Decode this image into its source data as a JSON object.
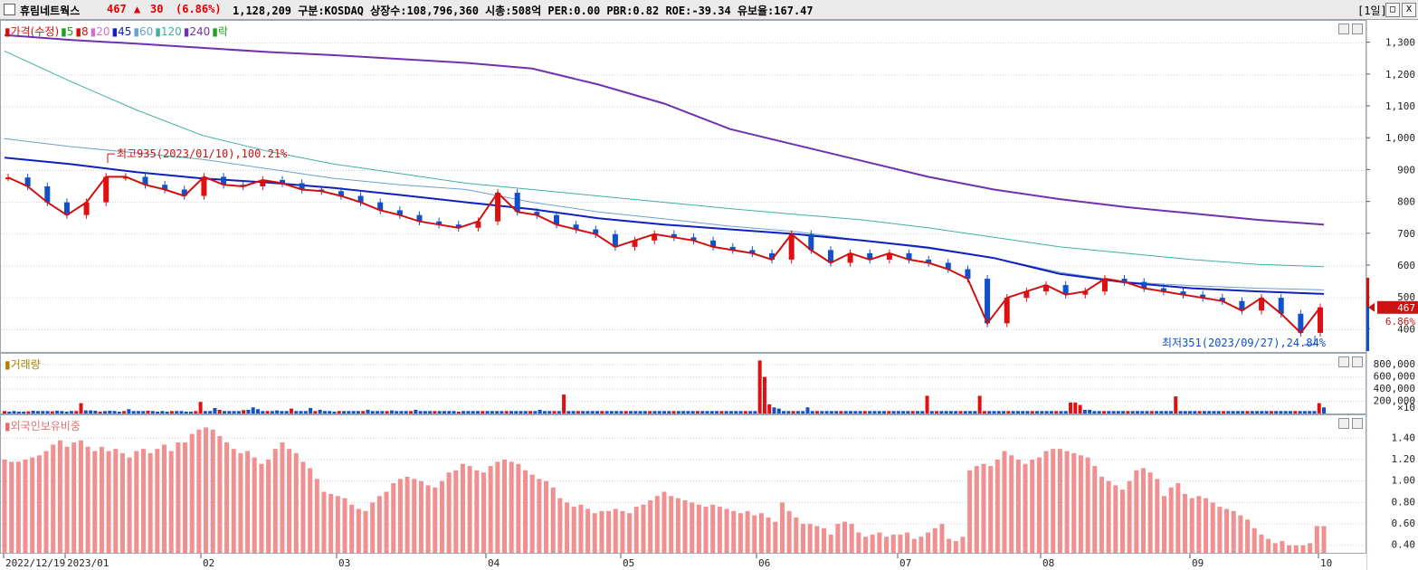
{
  "header": {
    "name": "휴림네트웍스",
    "price": "467",
    "arrow": "▲",
    "change": "30",
    "change_pct": "(6.86%)",
    "info": "1,128,209  구분:KOSDAQ 상장수:108,796,360 시총:508억 PER:0.00 PBR:0.82 ROE:-39.34 유보율:167.47",
    "period": "[1일]",
    "btn_min": "_",
    "btn_max": "□",
    "btn_close": "X"
  },
  "legend_price": [
    {
      "label": "가격(수정)",
      "color": "#d01010"
    },
    {
      "label": "5",
      "color": "#20a020"
    },
    {
      "label": "8",
      "color": "#d01010"
    },
    {
      "label": "20",
      "color": "#d070d0"
    },
    {
      "label": "45",
      "color": "#1020c0"
    },
    {
      "label": "60",
      "color": "#6aa0d0"
    },
    {
      "label": "120",
      "color": "#40b0a0"
    },
    {
      "label": "240",
      "color": "#7030b0"
    },
    {
      "label": "락",
      "color": "#20a020"
    }
  ],
  "legend_volume": "거래량",
  "legend_foreign": "외국인보유비중",
  "annotations": {
    "high": "최고935(2023/01/10),100.21%",
    "low": "최저351(2023/09/27),24.84%",
    "last_price": "467",
    "last_pct": "6.86%",
    "volume_mult": "×10"
  },
  "colors": {
    "up": "#e01010",
    "down": "#1050c8",
    "foreign": "#f09090",
    "grid": "#c8d0dc"
  },
  "chart_data": [
    {
      "type": "candlestick",
      "title": "가격(수정)",
      "x_start": "2022/12/19",
      "x_end": "2023/10",
      "ylim": [
        330,
        1370
      ],
      "y_ticks": [
        "1,300",
        "1,200",
        "1,100",
        "1,000",
        "900",
        "800",
        "700",
        "600",
        "500",
        "400"
      ],
      "y_tick_values": [
        1300,
        1200,
        1100,
        1000,
        900,
        800,
        700,
        600,
        500,
        400
      ],
      "high": {
        "value": 935,
        "date": "2023/01/10",
        "pct": 100.21
      },
      "low": {
        "value": 351,
        "date": "2023/09/27",
        "pct": 24.84
      },
      "last": 467,
      "series": [
        {
          "name": "240",
          "values": [
            1325,
            1310,
            1298,
            1285,
            1272,
            1262,
            1250,
            1238,
            1220,
            1170,
            1110,
            1030,
            980,
            930,
            880,
            840,
            810,
            785,
            765,
            745,
            730
          ]
        },
        {
          "name": "120",
          "values": [
            1275,
            1180,
            1090,
            1010,
            960,
            920,
            890,
            860,
            840,
            820,
            800,
            780,
            762,
            745,
            720,
            690,
            660,
            640,
            620,
            605,
            598
          ]
        },
        {
          "name": "60",
          "values": [
            1000,
            975,
            955,
            935,
            905,
            875,
            855,
            840,
            800,
            770,
            748,
            725,
            708,
            680,
            655,
            625,
            580,
            550,
            538,
            530,
            525
          ]
        },
        {
          "name": "45",
          "values": [
            940,
            920,
            895,
            875,
            862,
            845,
            823,
            800,
            778,
            750,
            730,
            715,
            700,
            680,
            658,
            625,
            575,
            548,
            530,
            520,
            512
          ]
        }
      ],
      "candles": [
        878,
        850,
        800,
        760,
        800,
        880,
        880,
        855,
        840,
        820,
        880,
        855,
        850,
        870,
        860,
        840,
        835,
        820,
        800,
        775,
        760,
        740,
        730,
        720,
        740,
        830,
        770,
        760,
        730,
        715,
        700,
        660,
        680,
        700,
        690,
        680,
        660,
        650,
        640,
        620,
        700,
        650,
        610,
        640,
        620,
        640,
        620,
        610,
        590,
        560,
        420,
        500,
        520,
        540,
        510,
        520,
        560,
        550,
        530,
        520,
        510,
        500,
        490,
        460,
        500,
        450,
        390,
        470
      ]
    },
    {
      "type": "bar",
      "title": "거래량",
      "y_ticks": [
        "800,000",
        "600,000",
        "400,000",
        "200,000"
      ],
      "y_tick_values": [
        800000,
        600000,
        400000,
        200000
      ],
      "ylim": [
        0,
        950000
      ],
      "values": [
        40000,
        30000,
        40000,
        30000,
        30000,
        35000,
        45000,
        40000,
        40000,
        40000,
        35000,
        45000,
        40000,
        30000,
        40000,
        40000,
        170000,
        50000,
        50000,
        45000,
        30000,
        40000,
        45000,
        40000,
        30000,
        40000,
        70000,
        40000,
        40000,
        40000,
        45000,
        40000,
        30000,
        40000,
        30000,
        40000,
        40000,
        40000,
        30000,
        30000,
        40000,
        190000,
        40000,
        40000,
        90000,
        60000,
        40000,
        40000,
        40000,
        40000,
        55000,
        60000,
        100000,
        70000,
        40000,
        40000,
        40000,
        50000,
        40000,
        40000,
        80000,
        40000,
        40000,
        40000,
        90000,
        40000,
        60000,
        40000,
        40000,
        30000,
        40000,
        40000,
        40000,
        40000,
        40000,
        40000,
        60000,
        40000,
        40000,
        40000,
        40000,
        50000,
        40000,
        40000,
        40000,
        40000,
        60000,
        40000,
        40000,
        40000,
        40000,
        40000,
        40000,
        40000,
        40000,
        30000,
        40000,
        40000,
        40000,
        40000,
        40000,
        40000,
        40000,
        40000,
        40000,
        40000,
        40000,
        40000,
        40000,
        40000,
        40000,
        40000,
        60000,
        40000,
        40000,
        40000,
        40000,
        310000,
        40000,
        40000,
        40000,
        40000,
        40000,
        40000,
        40000,
        40000,
        40000,
        40000,
        40000,
        40000,
        40000,
        40000,
        40000,
        40000,
        40000,
        40000,
        40000,
        40000,
        40000,
        40000,
        40000,
        40000,
        40000,
        40000,
        40000,
        40000,
        40000,
        40000,
        40000,
        40000,
        40000,
        40000,
        40000,
        40000,
        40000,
        40000,
        40000,
        40000,
        870000,
        600000,
        150000,
        100000,
        80000,
        40000,
        40000,
        40000,
        40000,
        40000,
        100000,
        40000,
        40000,
        40000,
        40000,
        40000,
        40000,
        40000,
        40000,
        40000,
        40000,
        40000,
        40000,
        40000,
        40000,
        40000,
        40000,
        40000,
        40000,
        40000,
        40000,
        40000,
        40000,
        40000,
        40000,
        290000,
        40000,
        40000,
        40000,
        40000,
        40000,
        40000,
        40000,
        40000,
        40000,
        40000,
        290000,
        40000,
        40000,
        40000,
        40000,
        40000,
        40000,
        40000,
        40000,
        40000,
        40000,
        40000,
        40000,
        40000,
        40000,
        40000,
        40000,
        40000,
        40000,
        180000,
        180000,
        140000,
        60000,
        60000,
        40000,
        40000,
        40000,
        40000,
        40000,
        40000,
        40000,
        40000,
        40000,
        40000,
        40000,
        40000,
        40000,
        40000,
        40000,
        40000,
        40000,
        280000,
        40000,
        40000,
        40000,
        40000,
        40000,
        40000,
        40000,
        40000,
        40000,
        40000,
        40000,
        40000,
        40000,
        40000,
        40000,
        40000,
        40000,
        40000,
        40000,
        40000,
        40000,
        40000,
        40000,
        40000,
        40000,
        40000,
        40000,
        40000,
        40000,
        170000,
        100000
      ]
    },
    {
      "type": "bar",
      "title": "외국인보유비중",
      "y_ticks": [
        "1.40",
        "1.20",
        "1.00",
        "0.80",
        "0.60",
        "0.40"
      ],
      "y_tick_values": [
        1.4,
        1.2,
        1.0,
        0.8,
        0.6,
        0.4
      ],
      "ylim": [
        0.33,
        1.58
      ],
      "values": [
        1.2,
        1.18,
        1.18,
        1.2,
        1.22,
        1.24,
        1.28,
        1.34,
        1.38,
        1.32,
        1.36,
        1.38,
        1.32,
        1.28,
        1.32,
        1.28,
        1.3,
        1.26,
        1.22,
        1.28,
        1.3,
        1.26,
        1.3,
        1.34,
        1.28,
        1.36,
        1.36,
        1.44,
        1.48,
        1.5,
        1.48,
        1.42,
        1.36,
        1.3,
        1.26,
        1.28,
        1.22,
        1.16,
        1.2,
        1.3,
        1.36,
        1.3,
        1.26,
        1.18,
        1.12,
        1.02,
        0.9,
        0.88,
        0.86,
        0.84,
        0.78,
        0.74,
        0.72,
        0.8,
        0.86,
        0.9,
        0.98,
        1.02,
        1.04,
        1.02,
        1.0,
        0.96,
        0.94,
        1.0,
        1.08,
        1.1,
        1.16,
        1.14,
        1.1,
        1.08,
        1.14,
        1.18,
        1.2,
        1.18,
        1.16,
        1.1,
        1.06,
        1.02,
        1.0,
        0.94,
        0.84,
        0.8,
        0.76,
        0.78,
        0.74,
        0.7,
        0.72,
        0.72,
        0.74,
        0.72,
        0.7,
        0.76,
        0.78,
        0.82,
        0.86,
        0.9,
        0.86,
        0.84,
        0.82,
        0.8,
        0.78,
        0.76,
        0.78,
        0.76,
        0.74,
        0.72,
        0.7,
        0.72,
        0.68,
        0.7,
        0.66,
        0.62,
        0.8,
        0.72,
        0.66,
        0.6,
        0.6,
        0.58,
        0.56,
        0.5,
        0.6,
        0.62,
        0.6,
        0.52,
        0.48,
        0.5,
        0.52,
        0.48,
        0.5,
        0.5,
        0.52,
        0.46,
        0.48,
        0.52,
        0.56,
        0.6,
        0.46,
        0.44,
        0.48,
        1.1,
        1.14,
        1.16,
        1.14,
        1.2,
        1.28,
        1.24,
        1.2,
        1.16,
        1.2,
        1.22,
        1.28,
        1.3,
        1.3,
        1.28,
        1.26,
        1.24,
        1.22,
        1.14,
        1.04,
        1.0,
        0.96,
        0.92,
        1.0,
        1.1,
        1.12,
        1.08,
        1.02,
        0.86,
        0.94,
        0.98,
        0.88,
        0.84,
        0.86,
        0.84,
        0.8,
        0.76,
        0.74,
        0.72,
        0.68,
        0.64,
        0.56,
        0.5,
        0.46,
        0.42,
        0.44,
        0.4,
        0.4,
        0.4,
        0.42,
        0.58,
        0.58
      ]
    }
  ],
  "x_labels": [
    "2022/12/19",
    "2023/01",
    "02",
    "03",
    "04",
    "05",
    "06",
    "07",
    "08",
    "09",
    "10"
  ]
}
